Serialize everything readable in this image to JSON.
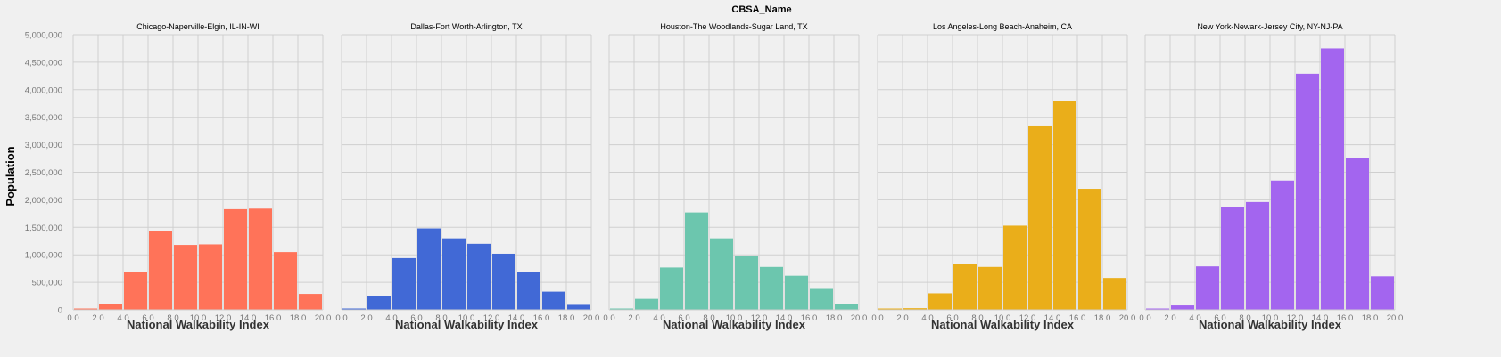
{
  "facet_title": "CBSA_Name",
  "y_axis_title": "Population",
  "x_axis_title": "National Walkability Index",
  "chart_data": [
    {
      "type": "bar",
      "title": "Chicago-Naperville-Elgin, IL-IN-WI",
      "color": "#ff7359",
      "xlabel": "National Walkability Index",
      "ylabel": "Population",
      "bins": [
        [
          0,
          2
        ],
        [
          2,
          4
        ],
        [
          4,
          6
        ],
        [
          6,
          8
        ],
        [
          8,
          10
        ],
        [
          10,
          12
        ],
        [
          12,
          14
        ],
        [
          14,
          16
        ],
        [
          16,
          18
        ],
        [
          18,
          20
        ]
      ],
      "values": [
        5000,
        100000,
        680000,
        1430000,
        1180000,
        1190000,
        1830000,
        1840000,
        1050000,
        290000
      ],
      "ylim": [
        0,
        5000000
      ],
      "grid": true
    },
    {
      "type": "bar",
      "title": "Dallas-Fort Worth-Arlington, TX",
      "color": "#4169d6",
      "xlabel": "National Walkability Index",
      "ylabel": "Population",
      "bins": [
        [
          0,
          2
        ],
        [
          2,
          4
        ],
        [
          4,
          6
        ],
        [
          6,
          8
        ],
        [
          8,
          10
        ],
        [
          10,
          12
        ],
        [
          12,
          14
        ],
        [
          14,
          16
        ],
        [
          16,
          18
        ],
        [
          18,
          20
        ]
      ],
      "values": [
        10000,
        250000,
        940000,
        1480000,
        1300000,
        1200000,
        1020000,
        680000,
        330000,
        90000
      ],
      "ylim": [
        0,
        5000000
      ],
      "grid": true
    },
    {
      "type": "bar",
      "title": "Houston-The Woodlands-Sugar Land, TX",
      "color": "#6cc6ae",
      "xlabel": "National Walkability Index",
      "ylabel": "Population",
      "bins": [
        [
          0,
          2
        ],
        [
          2,
          4
        ],
        [
          4,
          6
        ],
        [
          6,
          8
        ],
        [
          8,
          10
        ],
        [
          10,
          12
        ],
        [
          12,
          14
        ],
        [
          14,
          16
        ],
        [
          16,
          18
        ],
        [
          18,
          20
        ]
      ],
      "values": [
        10000,
        200000,
        770000,
        1770000,
        1300000,
        980000,
        780000,
        620000,
        380000,
        100000
      ],
      "ylim": [
        0,
        5000000
      ],
      "grid": true
    },
    {
      "type": "bar",
      "title": "Los Angeles-Long Beach-Anaheim, CA",
      "color": "#eaae1a",
      "xlabel": "National Walkability Index",
      "ylabel": "Population",
      "bins": [
        [
          0,
          2
        ],
        [
          2,
          4
        ],
        [
          4,
          6
        ],
        [
          6,
          8
        ],
        [
          8,
          10
        ],
        [
          10,
          12
        ],
        [
          12,
          14
        ],
        [
          14,
          16
        ],
        [
          16,
          18
        ],
        [
          18,
          20
        ]
      ],
      "values": [
        5000,
        30000,
        300000,
        830000,
        780000,
        1530000,
        3350000,
        3790000,
        2200000,
        580000
      ],
      "ylim": [
        0,
        5000000
      ],
      "grid": true
    },
    {
      "type": "bar",
      "title": "New York-Newark-Jersey City, NY-NJ-PA",
      "color": "#a365ef",
      "xlabel": "National Walkability Index",
      "ylabel": "Population",
      "bins": [
        [
          0,
          2
        ],
        [
          2,
          4
        ],
        [
          4,
          6
        ],
        [
          6,
          8
        ],
        [
          8,
          10
        ],
        [
          10,
          12
        ],
        [
          12,
          14
        ],
        [
          14,
          16
        ],
        [
          16,
          18
        ],
        [
          18,
          20
        ]
      ],
      "values": [
        10000,
        80000,
        790000,
        1870000,
        1960000,
        2350000,
        4290000,
        4750000,
        2760000,
        610000
      ],
      "ylim": [
        0,
        5000000
      ],
      "grid": true
    }
  ],
  "y_ticks": [
    0,
    500000,
    1000000,
    1500000,
    2000000,
    2500000,
    3000000,
    3500000,
    4000000,
    4500000,
    5000000
  ],
  "y_tick_labels": [
    "0",
    "500,000",
    "1,000,000",
    "1,500,000",
    "2,000,000",
    "2,500,000",
    "3,000,000",
    "3,500,000",
    "4,000,000",
    "4,500,000",
    "5,000,000"
  ],
  "x_ticks": [
    0,
    2,
    4,
    6,
    8,
    10,
    12,
    14,
    16,
    18,
    20
  ],
  "x_tick_labels": [
    "0.0",
    "2.0",
    "4.0",
    "6.0",
    "8.0",
    "10.0",
    "12.0",
    "14.0",
    "16.0",
    "18.0",
    "20.0"
  ]
}
